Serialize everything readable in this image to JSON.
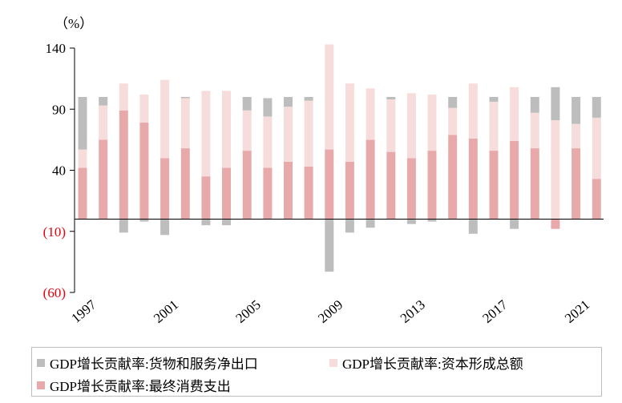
{
  "chart_data": {
    "type": "bar",
    "stacked": true,
    "unit_label": "（%）",
    "ylim": [
      -60,
      140
    ],
    "yticks": [
      140,
      90,
      40,
      -10,
      -60
    ],
    "ytick_labels": [
      "140",
      "90",
      "40",
      "(10)",
      "(60)"
    ],
    "negative_tick_color": "#e8000b",
    "x": [
      1997,
      1998,
      1999,
      2000,
      2001,
      2002,
      2003,
      2004,
      2005,
      2006,
      2007,
      2008,
      2009,
      2010,
      2011,
      2012,
      2013,
      2014,
      2015,
      2016,
      2017,
      2018,
      2019,
      2020,
      2021,
      2022
    ],
    "xtick_labels": [
      "1997",
      "2001",
      "2005",
      "2009",
      "2013",
      "2017",
      "2021"
    ],
    "series": [
      {
        "name": "GDP增长贡献率:最终消费支出",
        "color": "#e8a9aa",
        "values": [
          42,
          65,
          89,
          79,
          50,
          58,
          35,
          42,
          56,
          42,
          47,
          43,
          57,
          47,
          65,
          55,
          50,
          56,
          69,
          66,
          56,
          64,
          58,
          -8,
          58,
          33
        ]
      },
      {
        "name": "GDP增长贡献率:资本形成总额",
        "color": "#f7dcdc",
        "values": [
          15,
          28,
          22,
          23,
          64,
          41,
          70,
          63,
          33,
          42,
          45,
          54,
          86,
          64,
          42,
          43,
          53,
          46,
          22,
          45,
          40,
          44,
          29,
          81,
          20,
          50
        ]
      },
      {
        "name": "GDP增长贡献率:货物和服务净出口",
        "color": "#bdbdbd",
        "values": [
          43,
          7,
          -11,
          -2,
          -13,
          1,
          -5,
          -5,
          11,
          15,
          8,
          3,
          -43,
          -11,
          -7,
          2,
          -4,
          -2,
          9,
          -12,
          4,
          -8,
          13,
          27,
          22,
          17
        ]
      }
    ],
    "legend_position": "bottom"
  }
}
